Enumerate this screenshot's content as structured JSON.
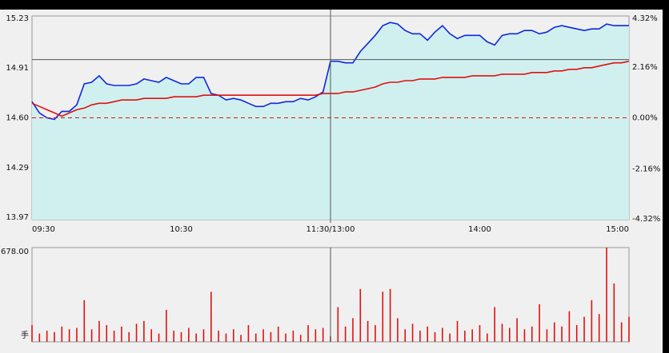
{
  "chart_data": [
    {
      "type": "line",
      "x": [
        0,
        3,
        6,
        9,
        12,
        15,
        18,
        21,
        24,
        27,
        30,
        33,
        36,
        39,
        42,
        45,
        48,
        51,
        54,
        57,
        60,
        63,
        66,
        69,
        72,
        75,
        78,
        81,
        84,
        87,
        90,
        93,
        96,
        99,
        102,
        105,
        108,
        111,
        114,
        117,
        120,
        123,
        126,
        129,
        132,
        135,
        138,
        141,
        144,
        147,
        150,
        153,
        156,
        159,
        162,
        165,
        168,
        171,
        174,
        177,
        180,
        183,
        186,
        189,
        192,
        195,
        198,
        201,
        204,
        207,
        210,
        213,
        216,
        219,
        222,
        225,
        228,
        231,
        234,
        237,
        240
      ],
      "xlim": [
        0,
        240
      ],
      "xticks": [
        {
          "value": 0,
          "label": "09:30"
        },
        {
          "value": 60,
          "label": "10:30"
        },
        {
          "value": 120,
          "label": "11:30/13:00"
        },
        {
          "value": 180,
          "label": "14:00"
        },
        {
          "value": 240,
          "label": "15:00"
        }
      ],
      "ylim": [
        13.97,
        15.23
      ],
      "yticks": [
        15.23,
        14.91,
        {
          "value": 14.6,
          "label": "14.60"
        },
        14.29,
        13.97
      ],
      "y2lim": [
        -4.32,
        4.32
      ],
      "y2ticks": [
        {
          "value": 4.32,
          "label": "4.32%"
        },
        {
          "value": 2.16,
          "label": "2.16%"
        },
        {
          "value": 0,
          "label": "0.00%"
        },
        {
          "value": -2.16,
          "label": "-2.16%"
        },
        {
          "value": -4.32,
          "label": "-4.32%"
        }
      ],
      "reference_line": 14.6,
      "cursor": {
        "x": 120,
        "y": 14.96
      },
      "series": [
        {
          "color": "#1028e0",
          "fill": "#cff0ef",
          "values": [
            14.7,
            14.63,
            14.6,
            14.59,
            14.64,
            14.64,
            14.68,
            14.81,
            14.82,
            14.86,
            14.81,
            14.8,
            14.8,
            14.8,
            14.81,
            14.84,
            14.83,
            14.82,
            14.85,
            14.83,
            14.81,
            14.81,
            14.85,
            14.85,
            14.75,
            14.74,
            14.71,
            14.72,
            14.71,
            14.69,
            14.67,
            14.67,
            14.69,
            14.69,
            14.7,
            14.7,
            14.72,
            14.71,
            14.73,
            14.76,
            14.95,
            14.95,
            14.94,
            14.94,
            15.01,
            15.06,
            15.11,
            15.17,
            15.19,
            15.18,
            15.14,
            15.12,
            15.12,
            15.08,
            15.13,
            15.17,
            15.12,
            15.09,
            15.11,
            15.11,
            15.11,
            15.07,
            15.05,
            15.11,
            15.12,
            15.12,
            15.14,
            15.14,
            15.12,
            15.13,
            15.16,
            15.17,
            15.16,
            15.15,
            15.14,
            15.15,
            15.15,
            15.18,
            15.17,
            15.17,
            15.17
          ]
        },
        {
          "color": "#e01010",
          "values": [
            14.69,
            14.67,
            14.65,
            14.63,
            14.61,
            14.63,
            14.65,
            14.66,
            14.68,
            14.69,
            14.69,
            14.7,
            14.71,
            14.71,
            14.71,
            14.72,
            14.72,
            14.72,
            14.72,
            14.73,
            14.73,
            14.73,
            14.73,
            14.74,
            14.74,
            14.74,
            14.74,
            14.74,
            14.74,
            14.74,
            14.74,
            14.74,
            14.74,
            14.74,
            14.74,
            14.74,
            14.74,
            14.74,
            14.74,
            14.75,
            14.75,
            14.75,
            14.76,
            14.76,
            14.77,
            14.78,
            14.79,
            14.81,
            14.82,
            14.82,
            14.83,
            14.83,
            14.84,
            14.84,
            14.84,
            14.85,
            14.85,
            14.85,
            14.85,
            14.86,
            14.86,
            14.86,
            14.86,
            14.87,
            14.87,
            14.87,
            14.87,
            14.88,
            14.88,
            14.88,
            14.89,
            14.89,
            14.9,
            14.9,
            14.91,
            14.91,
            14.92,
            14.93,
            14.94,
            14.94,
            14.95
          ]
        }
      ]
    },
    {
      "type": "bar",
      "x": [
        0,
        3,
        6,
        9,
        12,
        15,
        18,
        21,
        24,
        27,
        30,
        33,
        36,
        39,
        42,
        45,
        48,
        51,
        54,
        57,
        60,
        63,
        66,
        69,
        72,
        75,
        78,
        81,
        84,
        87,
        90,
        93,
        96,
        99,
        102,
        105,
        108,
        111,
        114,
        117,
        120,
        123,
        126,
        129,
        132,
        135,
        138,
        141,
        144,
        147,
        150,
        153,
        156,
        159,
        162,
        165,
        168,
        171,
        174,
        177,
        180,
        183,
        186,
        189,
        192,
        195,
        198,
        201,
        204,
        207,
        210,
        213,
        216,
        219,
        222,
        225,
        228,
        231,
        234,
        237,
        240
      ],
      "xlim": [
        0,
        240
      ],
      "values": [
        120,
        60,
        80,
        70,
        110,
        90,
        100,
        300,
        90,
        150,
        120,
        80,
        110,
        70,
        130,
        150,
        90,
        60,
        230,
        80,
        70,
        100,
        60,
        90,
        360,
        80,
        60,
        90,
        50,
        120,
        60,
        90,
        70,
        110,
        60,
        80,
        50,
        120,
        90,
        100,
        40,
        250,
        110,
        170,
        380,
        150,
        120,
        360,
        380,
        170,
        90,
        130,
        80,
        110,
        70,
        100,
        60,
        150,
        80,
        90,
        120,
        60,
        250,
        130,
        100,
        170,
        90,
        110,
        270,
        90,
        140,
        110,
        220,
        120,
        180,
        300,
        200,
        678,
        420,
        140,
        180
      ],
      "color": "#e01010",
      "ylim": [
        0,
        678
      ],
      "yticks": [
        {
          "value": 678,
          "label": "678.00"
        }
      ],
      "unit_label": "手",
      "cursor": {
        "x": 120
      }
    }
  ]
}
